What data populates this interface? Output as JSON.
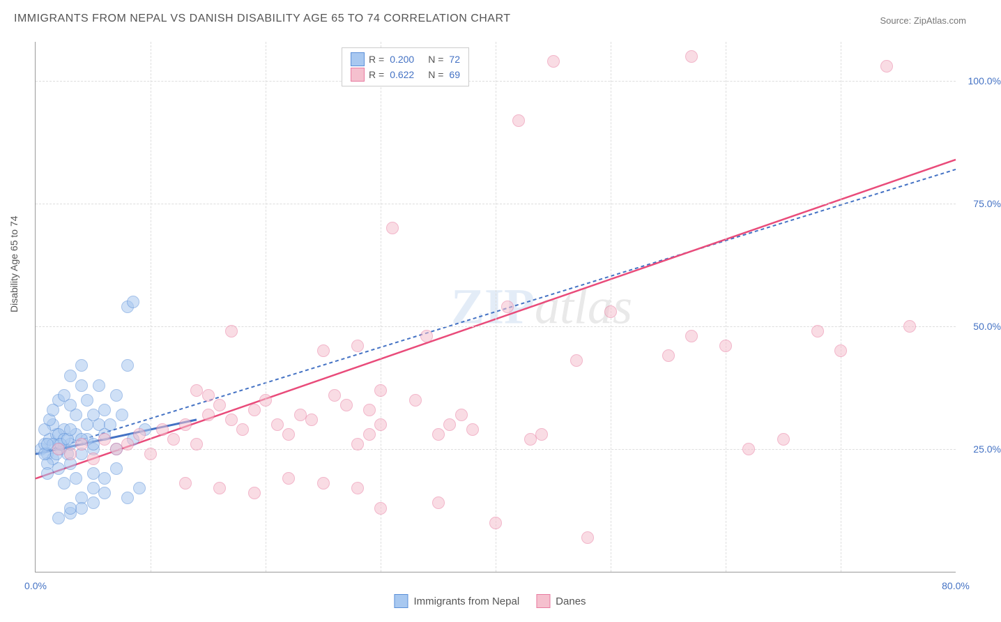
{
  "title": "IMMIGRANTS FROM NEPAL VS DANISH DISABILITY AGE 65 TO 74 CORRELATION CHART",
  "source": "Source: ZipAtlas.com",
  "y_axis_label": "Disability Age 65 to 74",
  "watermark_zip": "ZIP",
  "watermark_atlas": "atlas",
  "chart": {
    "type": "scatter",
    "xlim": [
      0,
      80
    ],
    "ylim": [
      0,
      108
    ],
    "x_ticks": [
      0,
      80
    ],
    "x_tick_labels": [
      "0.0%",
      "80.0%"
    ],
    "y_ticks": [
      25,
      50,
      75,
      100
    ],
    "y_tick_labels": [
      "25.0%",
      "50.0%",
      "75.0%",
      "100.0%"
    ],
    "v_grid_positions": [
      10,
      20,
      30,
      40,
      50,
      60,
      70
    ],
    "background_color": "#ffffff",
    "grid_color": "#dddddd",
    "axis_color": "#999999",
    "label_color": "#4472c4",
    "point_radius": 8,
    "point_opacity": 0.55,
    "series": [
      {
        "name": "Immigrants from Nepal",
        "color_fill": "#a8c8f0",
        "color_stroke": "#5a8fd8",
        "r_value": "0.200",
        "n_value": "72",
        "trend": {
          "x1": 0,
          "y1": 24,
          "x2": 80,
          "y2": 82,
          "width": 2,
          "dash": "5,4",
          "color": "#4472c4"
        },
        "trend_solid": {
          "x1": 0,
          "y1": 24,
          "x2": 14,
          "y2": 31,
          "width": 3,
          "color": "#4472c4"
        },
        "points": [
          [
            0.5,
            25
          ],
          [
            0.8,
            26
          ],
          [
            1.0,
            24
          ],
          [
            1.2,
            27
          ],
          [
            1.5,
            23
          ],
          [
            1.8,
            28
          ],
          [
            2.0,
            26
          ],
          [
            2.2,
            25
          ],
          [
            2.5,
            29
          ],
          [
            2.8,
            24
          ],
          [
            1.0,
            22
          ],
          [
            1.5,
            30
          ],
          [
            2.0,
            28
          ],
          [
            3.0,
            26
          ],
          [
            3.5,
            32
          ],
          [
            4.0,
            38
          ],
          [
            4.5,
            27
          ],
          [
            5.0,
            25
          ],
          [
            5.5,
            30
          ],
          [
            6.0,
            33
          ],
          [
            2.0,
            35
          ],
          [
            3.0,
            40
          ],
          [
            4.0,
            42
          ],
          [
            1.5,
            26
          ],
          [
            2.5,
            27
          ],
          [
            3.5,
            28
          ],
          [
            0.8,
            29
          ],
          [
            1.2,
            31
          ],
          [
            4.5,
            35
          ],
          [
            5.5,
            38
          ],
          [
            7.0,
            36
          ],
          [
            8.0,
            42
          ],
          [
            3.0,
            22
          ],
          [
            4.0,
            24
          ],
          [
            5.0,
            20
          ],
          [
            2.5,
            18
          ],
          [
            3.5,
            19
          ],
          [
            1.0,
            20
          ],
          [
            2.0,
            21
          ],
          [
            6.0,
            28
          ],
          [
            4.5,
            30
          ],
          [
            5.0,
            32
          ],
          [
            3.0,
            34
          ],
          [
            2.5,
            36
          ],
          [
            1.5,
            33
          ],
          [
            0.8,
            24
          ],
          [
            1.0,
            26
          ],
          [
            1.8,
            24
          ],
          [
            2.2,
            26
          ],
          [
            2.8,
            27
          ],
          [
            8.0,
            54
          ],
          [
            8.5,
            55
          ],
          [
            3.0,
            29
          ],
          [
            4.0,
            27
          ],
          [
            5.0,
            26
          ],
          [
            6.5,
            30
          ],
          [
            7.5,
            32
          ],
          [
            5.0,
            17
          ],
          [
            6.0,
            19
          ],
          [
            7.0,
            21
          ],
          [
            4.0,
            15
          ],
          [
            5.0,
            14
          ],
          [
            6.0,
            16
          ],
          [
            3.0,
            12
          ],
          [
            4.0,
            13
          ],
          [
            2.0,
            11
          ],
          [
            3.0,
            13
          ],
          [
            8.0,
            15
          ],
          [
            9.0,
            17
          ],
          [
            7.0,
            25
          ],
          [
            8.5,
            27
          ],
          [
            9.5,
            29
          ]
        ]
      },
      {
        "name": "Danes",
        "color_fill": "#f5c0ce",
        "color_stroke": "#e87ba0",
        "r_value": "0.622",
        "n_value": "69",
        "trend": {
          "x1": 0,
          "y1": 19,
          "x2": 80,
          "y2": 84,
          "width": 2.5,
          "dash": "none",
          "color": "#e94b7a"
        },
        "points": [
          [
            2,
            25
          ],
          [
            3,
            24
          ],
          [
            4,
            26
          ],
          [
            5,
            23
          ],
          [
            6,
            27
          ],
          [
            7,
            25
          ],
          [
            8,
            26
          ],
          [
            9,
            28
          ],
          [
            10,
            24
          ],
          [
            11,
            29
          ],
          [
            12,
            27
          ],
          [
            13,
            30
          ],
          [
            14,
            26
          ],
          [
            15,
            32
          ],
          [
            16,
            34
          ],
          [
            17,
            31
          ],
          [
            18,
            29
          ],
          [
            19,
            33
          ],
          [
            20,
            35
          ],
          [
            21,
            30
          ],
          [
            17,
            49
          ],
          [
            22,
            28
          ],
          [
            23,
            32
          ],
          [
            24,
            31
          ],
          [
            25,
            45
          ],
          [
            26,
            36
          ],
          [
            27,
            34
          ],
          [
            28,
            46
          ],
          [
            29,
            33
          ],
          [
            30,
            37
          ],
          [
            15,
            36
          ],
          [
            14,
            37
          ],
          [
            28,
            26
          ],
          [
            29,
            28
          ],
          [
            30,
            30
          ],
          [
            13,
            18
          ],
          [
            16,
            17
          ],
          [
            19,
            16
          ],
          [
            22,
            19
          ],
          [
            25,
            18
          ],
          [
            28,
            17
          ],
          [
            31,
            70
          ],
          [
            33,
            35
          ],
          [
            34,
            48
          ],
          [
            35,
            28
          ],
          [
            36,
            30
          ],
          [
            37,
            32
          ],
          [
            38,
            29
          ],
          [
            30,
            13
          ],
          [
            35,
            14
          ],
          [
            40,
            10
          ],
          [
            41,
            54
          ],
          [
            42,
            92
          ],
          [
            43,
            27
          ],
          [
            44,
            28
          ],
          [
            45,
            104
          ],
          [
            47,
            43
          ],
          [
            48,
            7
          ],
          [
            50,
            53
          ],
          [
            55,
            44
          ],
          [
            57,
            48
          ],
          [
            57,
            105
          ],
          [
            60,
            46
          ],
          [
            62,
            25
          ],
          [
            65,
            27
          ],
          [
            68,
            49
          ],
          [
            70,
            45
          ],
          [
            74,
            103
          ],
          [
            76,
            50
          ]
        ]
      }
    ]
  },
  "legend_top": {
    "r_label": "R =",
    "n_label": "N ="
  },
  "legend_bottom": [
    {
      "label": "Immigrants from Nepal",
      "fill": "#a8c8f0",
      "stroke": "#5a8fd8"
    },
    {
      "label": "Danes",
      "fill": "#f5c0ce",
      "stroke": "#e87ba0"
    }
  ]
}
